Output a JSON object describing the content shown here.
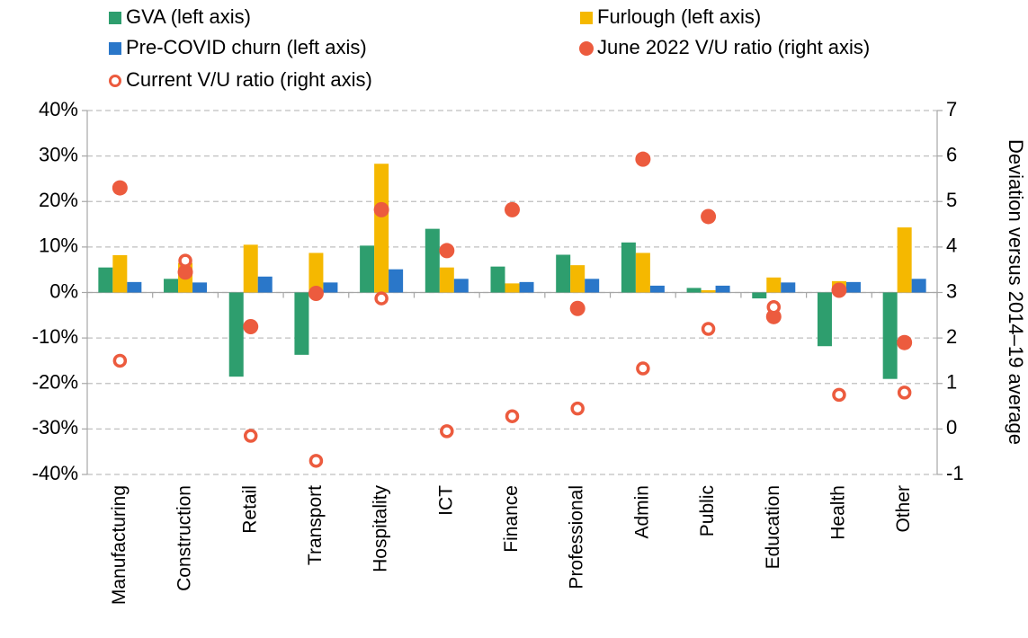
{
  "chart_data": {
    "type": "bar",
    "y2label": "Deviation versus 2014–19 average",
    "categories": [
      "Manufacturing",
      "Construction",
      "Retail",
      "Transport",
      "Hospitality",
      "ICT",
      "Finance",
      "Professional",
      "Admin",
      "Public",
      "Education",
      "Health",
      "Other"
    ],
    "series": [
      {
        "name": "GVA (left axis)",
        "type": "bar",
        "color": "#2e9e6e",
        "values": [
          5.5,
          3,
          -18.5,
          -13.7,
          10.3,
          14,
          5.7,
          8.3,
          11,
          1,
          -1.3,
          -11.8,
          -19
        ]
      },
      {
        "name": "Furlough (left axis)",
        "type": "bar",
        "color": "#f5b800",
        "values": [
          8.2,
          6.5,
          10.5,
          8.7,
          28.3,
          5.5,
          2,
          6,
          8.7,
          0.5,
          3.3,
          2.5,
          14.3
        ]
      },
      {
        "name": "Pre-COVID churn (left axis)",
        "type": "bar",
        "color": "#2a77c9",
        "values": [
          2.3,
          2.2,
          3.5,
          2.2,
          5.1,
          3,
          2.3,
          3,
          1.5,
          1.5,
          2.2,
          2.3,
          3
        ]
      },
      {
        "name": "June 2022 V/U ratio (right axis)",
        "type": "scatter",
        "marker": "filled",
        "axis": "y2",
        "color": "#ec5b3e",
        "values": [
          5.3,
          3.45,
          2.25,
          2.98,
          4.82,
          3.92,
          4.82,
          2.65,
          5.93,
          4.67,
          2.47,
          3.05,
          1.9
        ]
      },
      {
        "name": "Current V/U ratio (right axis)",
        "type": "scatter",
        "marker": "ring",
        "axis": "y2",
        "color": "#ec5b3e",
        "values": [
          1.5,
          3.7,
          -0.15,
          -0.7,
          2.87,
          -0.05,
          0.28,
          0.45,
          1.33,
          2.2,
          2.68,
          0.75,
          0.8
        ]
      }
    ],
    "ylim": [
      -40,
      40
    ],
    "yticks": [
      {
        "value": -40,
        "label": "-40%"
      },
      {
        "value": -30,
        "label": "-30%"
      },
      {
        "value": -20,
        "label": "-20%"
      },
      {
        "value": -10,
        "label": "-10%"
      },
      {
        "value": 0,
        "label": "0%"
      },
      {
        "value": 10,
        "label": "10%"
      },
      {
        "value": 20,
        "label": "20%"
      },
      {
        "value": 30,
        "label": "30%"
      },
      {
        "value": 40,
        "label": "40%"
      }
    ],
    "y2lim": [
      -1,
      7
    ],
    "y2ticks": [
      -1,
      0,
      1,
      2,
      3,
      4,
      5,
      6,
      7
    ],
    "grid": true
  }
}
